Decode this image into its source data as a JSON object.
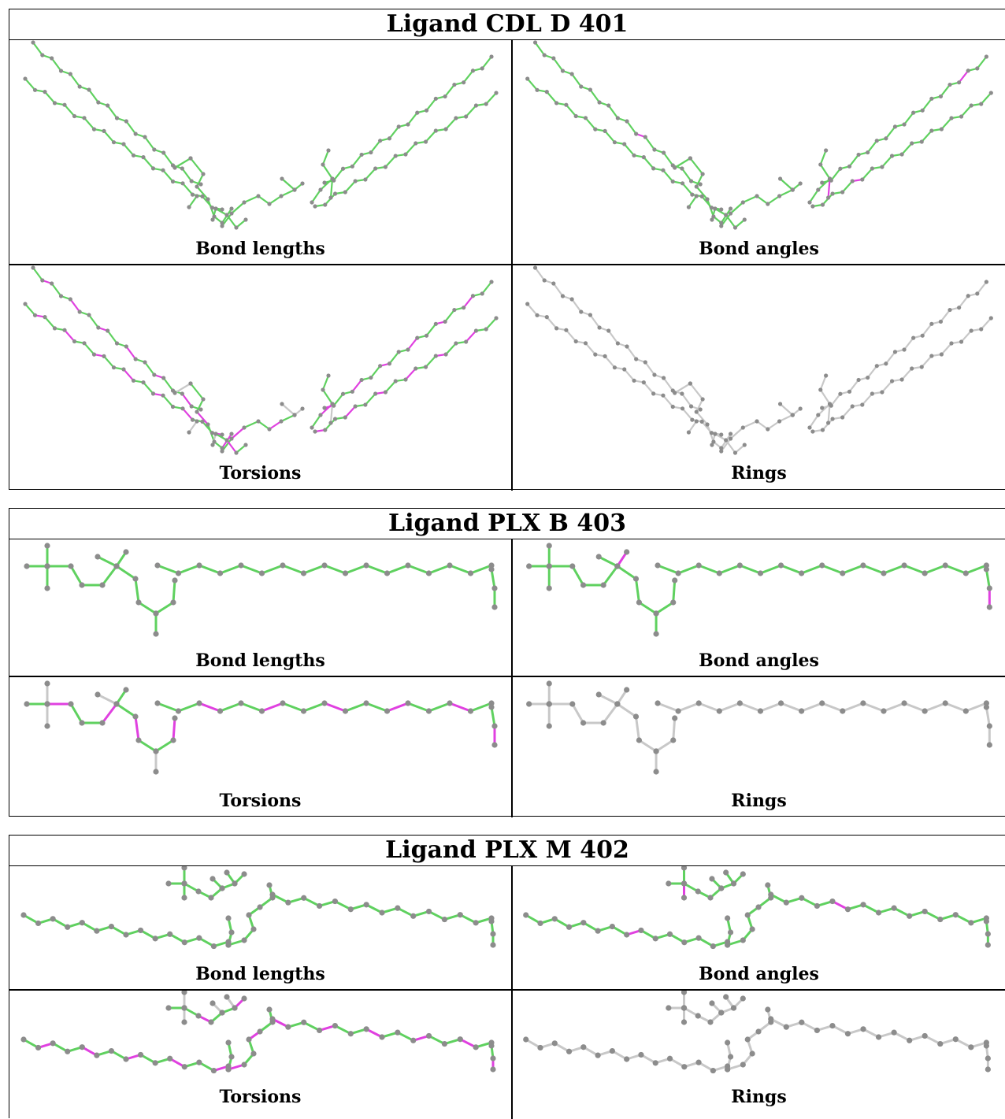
{
  "colors": {
    "ok": "#5fd15f",
    "outlier": "#e040e0",
    "na": "#c8c8c8",
    "atom": "#8c8c8c"
  },
  "panels": [
    {
      "title": "Ligand CDL D 401",
      "cells": [
        {
          "label": "Bond lengths",
          "mode": "bond"
        },
        {
          "label": "Bond angles",
          "mode": "angle"
        },
        {
          "label": "Torsions",
          "mode": "torsion"
        },
        {
          "label": "Rings",
          "mode": "ring"
        }
      ]
    },
    {
      "title": "Ligand PLX B 403",
      "cells": [
        {
          "label": "Bond lengths",
          "mode": "bond"
        },
        {
          "label": "Bond angles",
          "mode": "angle"
        },
        {
          "label": "Torsions",
          "mode": "torsion"
        },
        {
          "label": "Rings",
          "mode": "ring"
        }
      ]
    },
    {
      "title": "Ligand PLX M 402",
      "cells": [
        {
          "label": "Bond lengths",
          "mode": "bond"
        },
        {
          "label": "Bond angles",
          "mode": "angle"
        },
        {
          "label": "Torsions",
          "mode": "torsion"
        },
        {
          "label": "Rings",
          "mode": "ring"
        }
      ]
    }
  ]
}
